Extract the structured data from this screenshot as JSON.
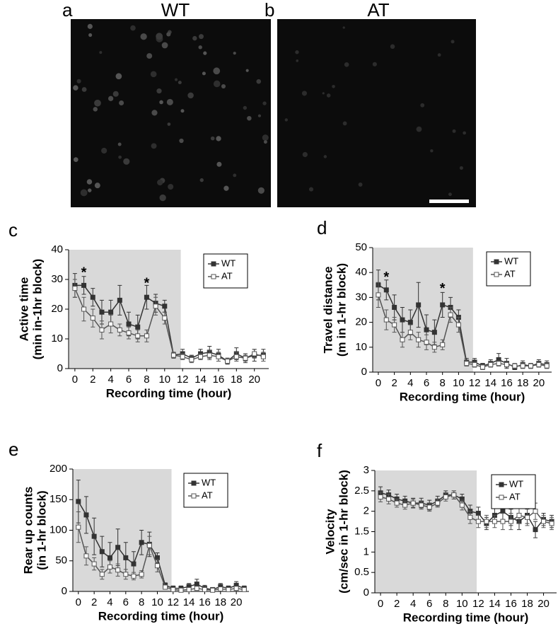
{
  "images": [
    {
      "label": "a",
      "title": "WT"
    },
    {
      "label": "b",
      "title": "AT"
    }
  ],
  "chart_data": [
    {
      "type": "line",
      "panel_label": "c",
      "xlabel": "Recording time (hour)",
      "ylabel": [
        "Active time",
        "(min in-1hr block)"
      ],
      "x": [
        0,
        1,
        2,
        3,
        4,
        5,
        6,
        7,
        8,
        9,
        10,
        11,
        12,
        13,
        14,
        15,
        16,
        17,
        18,
        19,
        20,
        21
      ],
      "xlim": [
        -0.7,
        21.6
      ],
      "xticks": [
        0,
        2,
        4,
        6,
        8,
        10,
        12,
        14,
        16,
        18,
        20
      ],
      "ylim": [
        0,
        40
      ],
      "yticks": [
        0,
        10,
        20,
        30,
        40
      ],
      "shaded_until": 11.8,
      "legend": "upper right",
      "annotations": [
        {
          "text": "*",
          "x": 1,
          "y": 33
        },
        {
          "text": "*",
          "x": 8,
          "y": 29.5
        }
      ],
      "series": [
        {
          "name": "WT",
          "color": "#333333",
          "marker": "filled-square",
          "values": [
            28,
            28,
            24,
            19,
            19,
            23,
            15,
            14,
            24,
            22,
            21,
            4.5,
            5,
            3.5,
            5,
            5.5,
            4.5,
            2.5,
            5,
            3.5,
            4.5,
            4.5
          ],
          "errors": [
            4,
            3,
            3,
            4,
            4,
            5,
            4,
            4,
            4,
            3,
            2,
            1,
            1.5,
            1,
            1.5,
            2,
            2,
            1,
            2,
            1.5,
            2,
            2
          ]
        },
        {
          "name": "AT",
          "color": "#555555",
          "marker": "open-square",
          "values": [
            27,
            20,
            17,
            13,
            15,
            13,
            12,
            11,
            11,
            21,
            17,
            4.5,
            4,
            3,
            4,
            4.5,
            4,
            2.5,
            4,
            3.5,
            5,
            4
          ],
          "errors": [
            3,
            4,
            3,
            3,
            3,
            2,
            2,
            2,
            2,
            3,
            2,
            1,
            1,
            1,
            1,
            1.5,
            1.5,
            1,
            1.5,
            1,
            1.5,
            1.5
          ]
        }
      ]
    },
    {
      "type": "line",
      "panel_label": "d",
      "xlabel": "Recording time (hour)",
      "ylabel": [
        "Travel distance",
        "(m in 1-hr block)"
      ],
      "x": [
        0,
        1,
        2,
        3,
        4,
        5,
        6,
        7,
        8,
        9,
        10,
        11,
        12,
        13,
        14,
        15,
        16,
        17,
        18,
        19,
        20,
        21
      ],
      "xlim": [
        -0.7,
        21.6
      ],
      "xticks": [
        0,
        2,
        4,
        6,
        8,
        10,
        12,
        14,
        16,
        18,
        20
      ],
      "ylim": [
        0,
        50
      ],
      "yticks": [
        0,
        10,
        20,
        30,
        40,
        50
      ],
      "shaded_until": 11.8,
      "legend": "upper right",
      "annotations": [
        {
          "text": "*",
          "x": 1,
          "y": 39
        },
        {
          "text": "*",
          "x": 8,
          "y": 34.5
        }
      ],
      "series": [
        {
          "name": "WT",
          "color": "#333333",
          "marker": "filled-square",
          "values": [
            35,
            33,
            26,
            21,
            20,
            27,
            17,
            16,
            27,
            26,
            22,
            4,
            4,
            2.5,
            3.5,
            5,
            3.5,
            2,
            3,
            2.5,
            3.5,
            3
          ],
          "errors": [
            6,
            4,
            5,
            5,
            5,
            9,
            6,
            5,
            5,
            4,
            3,
            1.5,
            1.5,
            1,
            1.5,
            2.5,
            2,
            1,
            1.5,
            1,
            1.5,
            1.5
          ]
        },
        {
          "name": "AT",
          "color": "#555555",
          "marker": "open-square",
          "values": [
            31,
            21,
            19,
            13,
            16,
            13,
            12,
            10,
            11,
            23,
            19,
            3.5,
            3,
            2,
            3,
            3.5,
            3,
            2.5,
            2.5,
            2.5,
            3,
            2.5
          ],
          "errors": [
            5,
            4,
            3,
            3,
            3,
            3,
            3,
            2,
            2,
            3,
            3,
            1,
            1,
            1,
            1,
            1,
            1,
            1,
            1,
            1,
            1,
            1
          ]
        }
      ]
    },
    {
      "type": "line",
      "panel_label": "e",
      "xlabel": "Recording time (hour)",
      "ylabel": [
        "Rear up counts",
        "(in 1-hr block)"
      ],
      "x": [
        0,
        1,
        2,
        3,
        4,
        5,
        6,
        7,
        8,
        9,
        10,
        11,
        12,
        13,
        14,
        15,
        16,
        17,
        18,
        19,
        20,
        21
      ],
      "xlim": [
        -0.7,
        21.6
      ],
      "xticks": [
        0,
        2,
        4,
        6,
        8,
        10,
        12,
        14,
        16,
        18,
        20
      ],
      "ylim": [
        0,
        200
      ],
      "yticks": [
        0,
        50,
        100,
        150,
        200
      ],
      "shaded_until": 11.8,
      "legend": "upper right",
      "series": [
        {
          "name": "WT",
          "color": "#333333",
          "marker": "filled-square",
          "values": [
            147,
            125,
            90,
            65,
            55,
            72,
            55,
            45,
            80,
            77,
            55,
            10,
            5,
            5,
            8,
            12,
            5,
            3,
            8,
            5,
            10,
            5
          ],
          "errors": [
            35,
            30,
            30,
            25,
            25,
            30,
            25,
            20,
            20,
            20,
            8,
            4,
            4,
            4,
            5,
            8,
            5,
            3,
            5,
            4,
            6,
            4
          ]
        },
        {
          "name": "AT",
          "color": "#555555",
          "marker": "open-square",
          "values": [
            105,
            58,
            45,
            28,
            40,
            35,
            28,
            25,
            28,
            75,
            42,
            7,
            3,
            2,
            3,
            5,
            3,
            2,
            4,
            3,
            5,
            3
          ],
          "errors": [
            25,
            15,
            10,
            8,
            10,
            10,
            8,
            6,
            6,
            15,
            10,
            3,
            2,
            2,
            2,
            3,
            2,
            2,
            3,
            2,
            3,
            2
          ]
        }
      ]
    },
    {
      "type": "line",
      "panel_label": "f",
      "xlabel": "Recording time (hour)",
      "ylabel": [
        "Velocity",
        "(cm/sec in 1-hr block)"
      ],
      "x": [
        0,
        1,
        2,
        3,
        4,
        5,
        6,
        7,
        8,
        9,
        10,
        11,
        12,
        13,
        14,
        15,
        16,
        17,
        18,
        19,
        20,
        21
      ],
      "xlim": [
        -0.7,
        21.6
      ],
      "xticks": [
        0,
        2,
        4,
        6,
        8,
        10,
        12,
        14,
        16,
        18,
        20
      ],
      "ylim": [
        0,
        3
      ],
      "yticks": [
        0,
        0.5,
        1,
        1.5,
        2,
        2.5,
        3
      ],
      "shaded_until": 11.8,
      "legend": "upper right",
      "series": [
        {
          "name": "WT",
          "color": "#333333",
          "marker": "filled-square",
          "values": [
            2.45,
            2.4,
            2.3,
            2.25,
            2.2,
            2.2,
            2.15,
            2.25,
            2.4,
            2.4,
            2.3,
            2.0,
            1.95,
            1.7,
            1.9,
            2.0,
            1.85,
            1.75,
            1.9,
            1.55,
            1.8,
            1.75
          ],
          "errors": [
            0.15,
            0.12,
            0.12,
            0.12,
            0.12,
            0.12,
            0.12,
            0.12,
            0.1,
            0.1,
            0.12,
            0.15,
            0.15,
            0.15,
            0.2,
            0.2,
            0.2,
            0.2,
            0.2,
            0.2,
            0.15,
            0.15
          ]
        },
        {
          "name": "AT",
          "color": "#555555",
          "marker": "open-square",
          "values": [
            2.35,
            2.3,
            2.2,
            2.15,
            2.2,
            2.15,
            2.1,
            2.2,
            2.35,
            2.4,
            2.15,
            1.85,
            1.75,
            1.75,
            1.75,
            1.75,
            1.75,
            1.9,
            1.85,
            2.0,
            1.75,
            1.7
          ],
          "errors": [
            0.12,
            0.12,
            0.1,
            0.1,
            0.1,
            0.1,
            0.1,
            0.1,
            0.1,
            0.1,
            0.12,
            0.15,
            0.15,
            0.15,
            0.15,
            0.2,
            0.2,
            0.2,
            0.2,
            0.2,
            0.15,
            0.15
          ]
        }
      ]
    }
  ]
}
